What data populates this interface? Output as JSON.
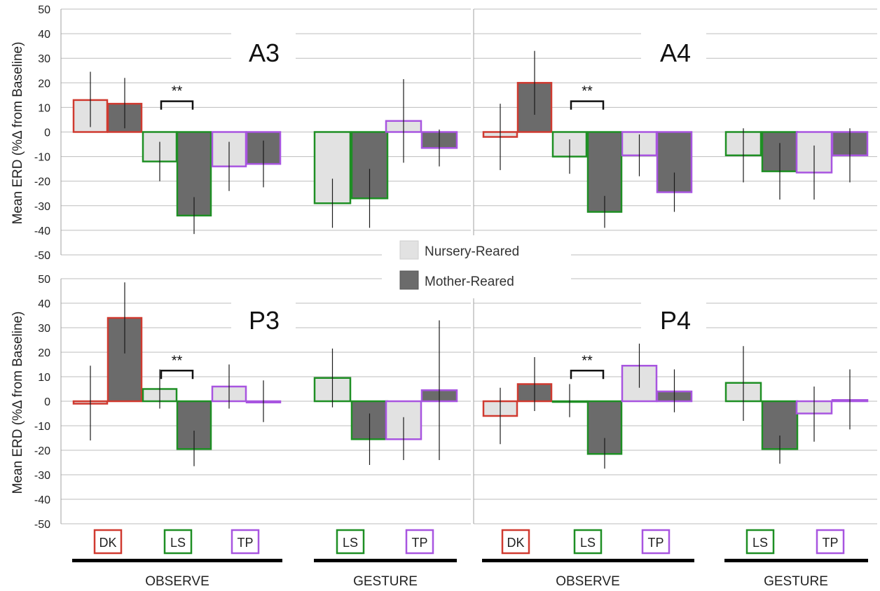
{
  "figure": {
    "ylabel": "Mean ERD (%Δ from Baseline)",
    "significance_label": "**",
    "colors": {
      "DK": "#d03a30",
      "LS": "#1e8f24",
      "TP": "#a855e0",
      "nursery": "#e2e2e2",
      "mother": "#6b6b6b",
      "grid": "#bdbdbd"
    },
    "legend": {
      "nursery": "Nursery-Reared",
      "mother": "Mother-Reared"
    },
    "groups": {
      "observe": "OBSERVE",
      "gesture": "GESTURE"
    },
    "conditions": {
      "DK": "DK",
      "LS": "LS",
      "TP": "TP"
    }
  },
  "chart_data": [
    {
      "type": "bar",
      "title": "A3",
      "ylim": [
        -50,
        50
      ],
      "yticks": [
        "-50",
        "-40",
        "-30",
        "-20",
        "-10",
        "0",
        "10",
        "20",
        "30",
        "40",
        "50"
      ],
      "grid": true,
      "categories": [
        "OBSERVE DK",
        "OBSERVE LS",
        "OBSERVE TP",
        "GESTURE LS",
        "GESTURE TP"
      ],
      "series": [
        {
          "name": "Nursery-Reared",
          "values": [
            13,
            -12,
            -14,
            -29,
            4.5
          ],
          "err_low": [
            2,
            -20,
            -24,
            -39,
            -12.5
          ],
          "err_high": [
            24.5,
            -4,
            -4,
            -19,
            21.5
          ]
        },
        {
          "name": "Mother-Reared",
          "values": [
            11.5,
            -34,
            -13,
            -27,
            -6.5
          ],
          "err_low": [
            1.5,
            -41.5,
            -22.5,
            -39,
            -14
          ],
          "err_high": [
            22,
            -26.5,
            -3.5,
            -15,
            1
          ]
        }
      ],
      "significance": "OBSERVE LS"
    },
    {
      "type": "bar",
      "title": "A4",
      "ylim": [
        -50,
        50
      ],
      "yticks": [
        "-50",
        "-40",
        "-30",
        "-20",
        "-10",
        "0",
        "10",
        "20",
        "30",
        "40",
        "50"
      ],
      "grid": true,
      "categories": [
        "OBSERVE DK",
        "OBSERVE LS",
        "OBSERVE TP",
        "GESTURE LS",
        "GESTURE TP"
      ],
      "series": [
        {
          "name": "Nursery-Reared",
          "values": [
            -2,
            -10,
            -9.5,
            -9.5,
            -16.5
          ],
          "err_low": [
            -15.5,
            -17,
            -18,
            -20.5,
            -27.5
          ],
          "err_high": [
            11.5,
            -3,
            -1,
            1.5,
            -5.5
          ]
        },
        {
          "name": "Mother-Reared",
          "values": [
            20,
            -32.5,
            -24.5,
            -16,
            -9.5
          ],
          "err_low": [
            7,
            -39,
            -32.5,
            -27.5,
            -20.5
          ],
          "err_high": [
            33,
            -26,
            -16.5,
            -4.5,
            1.5
          ]
        }
      ],
      "significance": "OBSERVE LS"
    },
    {
      "type": "bar",
      "title": "P3",
      "ylim": [
        -50,
        50
      ],
      "yticks": [
        "-50",
        "-40",
        "-30",
        "-20",
        "-10",
        "0",
        "10",
        "20",
        "30",
        "40",
        "50"
      ],
      "grid": true,
      "categories": [
        "OBSERVE DK",
        "OBSERVE LS",
        "OBSERVE TP",
        "GESTURE LS",
        "GESTURE TP"
      ],
      "series": [
        {
          "name": "Nursery-Reared",
          "values": [
            -1,
            5,
            6,
            9.5,
            -15.5
          ],
          "err_low": [
            -16,
            -3,
            -3,
            -2.5,
            -24
          ],
          "err_high": [
            14.5,
            13,
            15,
            21.5,
            -6.5
          ]
        },
        {
          "name": "Mother-Reared",
          "values": [
            34,
            -19.5,
            -0.5,
            -15.5,
            4.5
          ],
          "err_low": [
            19.5,
            -26.5,
            -8.5,
            -26,
            -24
          ],
          "err_high": [
            48.5,
            -12,
            8.5,
            -5,
            33
          ]
        }
      ],
      "significance": "OBSERVE LS"
    },
    {
      "type": "bar",
      "title": "P4",
      "ylim": [
        -50,
        50
      ],
      "yticks": [
        "-50",
        "-40",
        "-30",
        "-20",
        "-10",
        "0",
        "10",
        "20",
        "30",
        "40",
        "50"
      ],
      "grid": true,
      "categories": [
        "OBSERVE DK",
        "OBSERVE LS",
        "OBSERVE TP",
        "GESTURE LS",
        "GESTURE TP"
      ],
      "series": [
        {
          "name": "Nursery-Reared",
          "values": [
            -6,
            0,
            14.5,
            7.5,
            -5
          ],
          "err_low": [
            -17.5,
            -6.5,
            5.5,
            -8,
            -16.5
          ],
          "err_high": [
            5.5,
            7,
            23.5,
            22.5,
            6
          ]
        },
        {
          "name": "Mother-Reared",
          "values": [
            7,
            -21.5,
            4,
            -19.5,
            0.5
          ],
          "err_low": [
            -4,
            -27.5,
            -4.5,
            -25.5,
            -11.5
          ],
          "err_high": [
            18,
            -15,
            13,
            -14,
            13
          ]
        }
      ],
      "significance": "OBSERVE LS"
    }
  ]
}
